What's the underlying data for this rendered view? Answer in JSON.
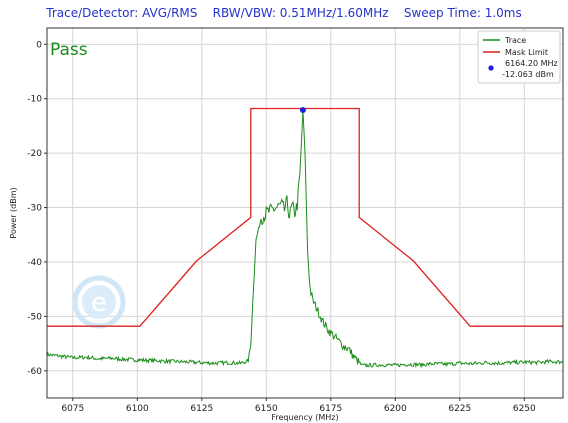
{
  "header": {
    "trace_detector": "Trace/Detector: AVG/RMS",
    "rbw_vbw": "RBW/VBW: 0.51MHz/1.60MHz",
    "sweep_time": "Sweep Time: 1.0ms"
  },
  "status_text": "Pass",
  "chart_data": {
    "type": "line",
    "xlabel": "Frequency (MHz)",
    "ylabel": "Power (dBm)",
    "xlim": [
      6065,
      6265
    ],
    "ylim": [
      -65,
      3
    ],
    "xticks": [
      6075,
      6100,
      6125,
      6150,
      6175,
      6200,
      6225,
      6250
    ],
    "yticks": [
      0,
      -10,
      -20,
      -30,
      -40,
      -50,
      -60
    ],
    "grid": true,
    "legend_position": "top-right",
    "series": [
      {
        "name": "Trace",
        "color": "#1a8c1a",
        "x": [
          6065,
          6070,
          6075,
          6080,
          6085,
          6090,
          6095,
          6100,
          6105,
          6110,
          6115,
          6120,
          6125,
          6130,
          6135,
          6140,
          6143,
          6144,
          6145,
          6146,
          6147,
          6148,
          6150,
          6152,
          6154,
          6156,
          6157,
          6158,
          6159,
          6160,
          6161,
          6162,
          6163,
          6164.2,
          6165,
          6166,
          6167,
          6168,
          6170,
          6172,
          6174,
          6176,
          6178,
          6180,
          6182,
          6184,
          6186,
          6187,
          6190,
          6195,
          6200,
          6205,
          6210,
          6215,
          6220,
          6225,
          6230,
          6235,
          6240,
          6245,
          6250,
          6255,
          6260,
          6265
        ],
        "y": [
          -57,
          -57.3,
          -57.6,
          -57.5,
          -57.8,
          -57.7,
          -57.9,
          -58,
          -58.1,
          -58.2,
          -58.3,
          -58.4,
          -58.5,
          -58.6,
          -58.5,
          -58.6,
          -58.2,
          -55,
          -45,
          -36,
          -34,
          -32,
          -31,
          -30.5,
          -30,
          -29.5,
          -30.5,
          -29,
          -31.5,
          -29.8,
          -31,
          -29.5,
          -24,
          -12.063,
          -20,
          -38,
          -45,
          -47,
          -49,
          -51,
          -52.5,
          -53.5,
          -54.5,
          -55.5,
          -56,
          -57.5,
          -58.5,
          -59,
          -59,
          -58.9,
          -59,
          -58.8,
          -58.9,
          -58.7,
          -58.8,
          -58.6,
          -58.7,
          -58.5,
          -58.6,
          -58.5,
          -58.4,
          -58.5,
          -58.3,
          -58.4
        ]
      },
      {
        "name": "Mask Limit",
        "color": "#dd2222",
        "x": [
          6065,
          6101,
          6123,
          6144,
          6144,
          6186,
          6186,
          6207,
          6229,
          6265
        ],
        "y": [
          -51.8,
          -51.8,
          -39.8,
          -31.8,
          -11.8,
          -11.8,
          -31.8,
          -39.8,
          -51.8,
          -51.8
        ]
      }
    ],
    "marker": {
      "x": 6164.2,
      "y": -12.063,
      "color": "#1e1edc",
      "legend_lines": [
        "6164.20 MHz",
        "-12.063 dBm"
      ]
    }
  }
}
